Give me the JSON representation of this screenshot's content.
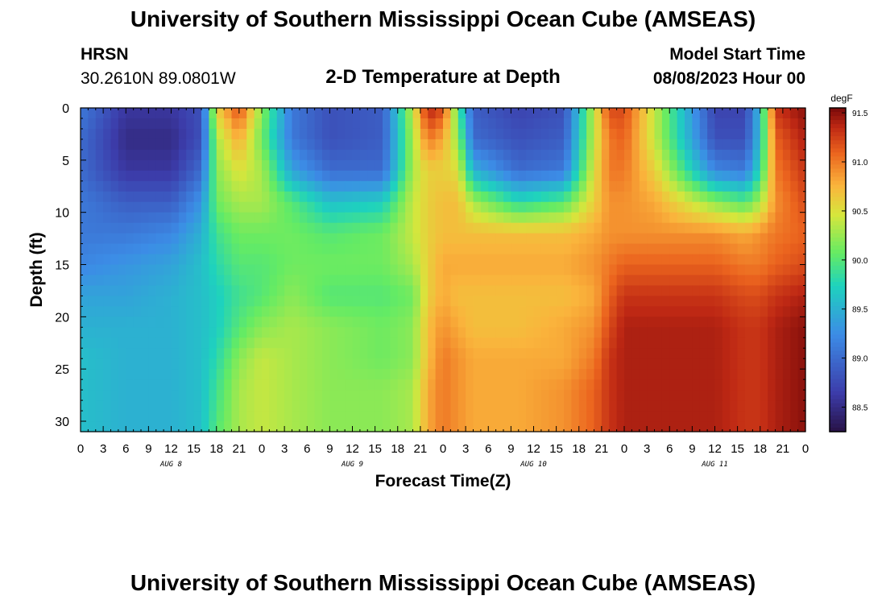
{
  "header": {
    "title": "University of Southern Mississippi Ocean Cube (AMSEAS)",
    "station": "HRSN",
    "coords": "30.2610N  89.0801W",
    "subtitle": "2-D Temperature at Depth",
    "start_label": "Model Start Time",
    "start_value": "08/08/2023 Hour 00"
  },
  "footer": {
    "title": "University of Southern Mississippi Ocean Cube (AMSEAS)"
  },
  "chart_data": {
    "type": "heatmap",
    "title": "2-D Temperature at Depth",
    "xlabel": "Forecast Time(Z)",
    "ylabel": "Depth (ft)",
    "units": "degF",
    "x_hours": [
      0,
      96
    ],
    "x_tick_labels": [
      "0",
      "3",
      "6",
      "9",
      "12",
      "15",
      "18",
      "21",
      "0",
      "3",
      "6",
      "9",
      "12",
      "15",
      "18",
      "21",
      "0",
      "3",
      "6",
      "9",
      "12",
      "15",
      "18",
      "21",
      "0",
      "3",
      "6",
      "9",
      "12",
      "15",
      "18",
      "21",
      "0"
    ],
    "day_labels": [
      "AUG 8",
      "AUG 9",
      "AUG 10",
      "AUG 11"
    ],
    "ylim": [
      0,
      31
    ],
    "y_ticks": [
      0,
      5,
      10,
      15,
      20,
      25,
      30
    ],
    "colorbar": {
      "min": 88.25,
      "max": 91.55,
      "tick_values": [
        88.5,
        89.0,
        89.5,
        90.0,
        90.5,
        91.0,
        91.5
      ],
      "tick_labels": [
        "88.5",
        "89.0",
        "89.5",
        "90.0",
        "90.5",
        "91.0",
        "91.5"
      ]
    },
    "depths_ft": [
      0,
      3,
      6,
      9,
      12,
      15,
      18,
      21,
      24,
      27,
      31
    ],
    "times_hr": [
      0,
      6,
      12,
      16,
      18,
      21,
      24,
      28,
      33,
      40,
      44,
      46,
      48,
      50,
      52,
      58,
      64,
      68,
      70,
      72,
      76,
      84,
      88,
      90,
      92,
      96
    ],
    "temperature_degF": [
      [
        89.1,
        88.6,
        88.6,
        88.8,
        90.6,
        91.2,
        90.2,
        89.1,
        88.8,
        88.9,
        90.4,
        91.4,
        91.2,
        90.0,
        88.9,
        88.7,
        88.8,
        90.4,
        91.2,
        91.2,
        90.4,
        88.7,
        88.7,
        89.6,
        91.3,
        91.5
      ],
      [
        89.0,
        88.5,
        88.5,
        88.8,
        90.3,
        90.8,
        90.1,
        89.1,
        88.8,
        88.9,
        90.3,
        91.0,
        90.8,
        90.2,
        89.0,
        88.8,
        88.9,
        90.4,
        91.0,
        91.1,
        90.4,
        88.8,
        88.8,
        89.6,
        91.1,
        91.4
      ],
      [
        89.0,
        88.6,
        88.6,
        89.0,
        90.2,
        90.5,
        90.3,
        89.4,
        89.0,
        89.0,
        90.3,
        90.6,
        90.6,
        90.5,
        89.5,
        89.0,
        89.1,
        90.5,
        91.0,
        91.0,
        90.6,
        89.2,
        89.1,
        89.8,
        91.0,
        91.3
      ],
      [
        89.1,
        88.9,
        88.9,
        89.3,
        90.1,
        90.3,
        90.3,
        90.0,
        89.6,
        89.7,
        90.4,
        90.6,
        90.7,
        90.7,
        90.3,
        89.8,
        90.0,
        90.6,
        90.9,
        90.9,
        90.8,
        90.2,
        90.0,
        90.3,
        90.9,
        91.2
      ],
      [
        89.1,
        89.1,
        89.2,
        89.5,
        89.9,
        90.1,
        90.1,
        90.1,
        90.0,
        90.1,
        90.4,
        90.6,
        90.7,
        90.7,
        90.7,
        90.7,
        90.7,
        90.8,
        90.9,
        90.9,
        90.9,
        90.9,
        90.8,
        90.9,
        91.0,
        91.1
      ],
      [
        89.2,
        89.3,
        89.4,
        89.6,
        89.8,
        90.0,
        90.0,
        90.1,
        90.1,
        90.1,
        90.3,
        90.6,
        90.8,
        90.8,
        90.8,
        90.8,
        90.8,
        90.9,
        91.0,
        91.1,
        91.1,
        91.1,
        91.0,
        91.0,
        91.1,
        91.2
      ],
      [
        89.4,
        89.4,
        89.5,
        89.6,
        89.7,
        89.9,
        90.0,
        90.2,
        90.0,
        90.0,
        90.1,
        90.6,
        90.8,
        90.7,
        90.7,
        90.7,
        90.7,
        90.8,
        91.1,
        91.3,
        91.3,
        91.3,
        91.2,
        91.2,
        91.3,
        91.4
      ],
      [
        89.5,
        89.5,
        89.5,
        89.6,
        89.7,
        90.0,
        90.2,
        90.3,
        90.2,
        90.1,
        90.2,
        90.7,
        90.9,
        90.8,
        90.7,
        90.7,
        90.8,
        90.9,
        91.2,
        91.4,
        91.4,
        91.4,
        91.3,
        91.3,
        91.4,
        91.5
      ],
      [
        89.6,
        89.5,
        89.5,
        89.6,
        89.8,
        90.2,
        90.4,
        90.3,
        90.2,
        90.1,
        90.2,
        90.7,
        91.0,
        90.9,
        90.8,
        90.8,
        90.8,
        91.0,
        91.3,
        91.4,
        91.4,
        91.4,
        91.3,
        91.3,
        91.4,
        91.5
      ],
      [
        89.6,
        89.5,
        89.5,
        89.6,
        89.9,
        90.3,
        90.4,
        90.3,
        90.2,
        90.2,
        90.3,
        90.8,
        91.0,
        90.9,
        90.8,
        90.8,
        90.9,
        91.1,
        91.3,
        91.4,
        91.4,
        91.4,
        91.3,
        91.3,
        91.4,
        91.5
      ],
      [
        89.6,
        89.5,
        89.5,
        89.6,
        90.0,
        90.3,
        90.4,
        90.3,
        90.2,
        90.2,
        90.3,
        90.8,
        91.0,
        90.9,
        90.8,
        90.8,
        90.9,
        91.1,
        91.3,
        91.4,
        91.4,
        91.4,
        91.3,
        91.3,
        91.4,
        91.5
      ]
    ]
  }
}
